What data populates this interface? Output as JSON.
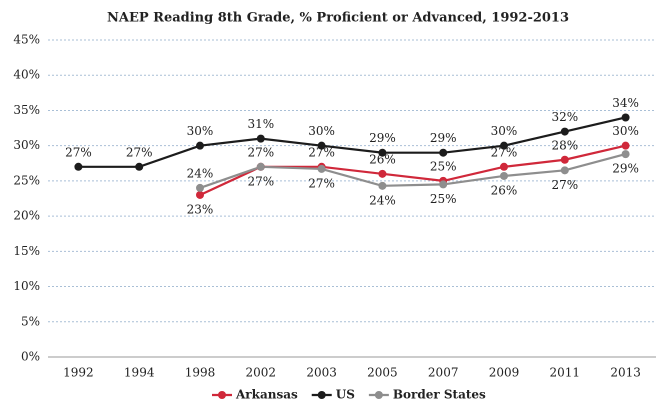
{
  "chart_data": {
    "type": "line",
    "title": "NAEP Reading 8th Grade, % Proficient or Advanced, 1992-2013",
    "categories": [
      "1992",
      "1994",
      "1998",
      "2002",
      "2003",
      "2005",
      "2007",
      "2009",
      "2011",
      "2013"
    ],
    "series": [
      {
        "name": "Arkansas",
        "color": "#d0283a",
        "values": [
          null,
          null,
          23,
          27,
          27,
          26,
          25,
          27,
          28,
          30
        ],
        "value_labels": [
          null,
          null,
          "23%",
          "27%",
          "27%",
          "26%",
          "25%",
          "27%",
          "28%",
          "30%"
        ]
      },
      {
        "name": "US",
        "color": "#1c1c1c",
        "values": [
          27,
          27,
          30,
          31,
          30,
          29,
          29,
          30,
          32,
          34
        ],
        "value_labels": [
          "27%",
          "27%",
          "30%",
          "31%",
          "30%",
          "29%",
          "29%",
          "30%",
          "32%",
          "34%"
        ]
      },
      {
        "name": "Border States",
        "color": "#8e8e8e",
        "values": [
          null,
          null,
          24,
          27,
          26.7,
          24.3,
          24.5,
          25.7,
          26.5,
          28.8
        ],
        "value_labels": [
          null,
          null,
          "24%",
          "27%",
          "27%",
          "24%",
          "25%",
          "26%",
          "27%",
          "29%"
        ]
      }
    ],
    "ylim": [
      0,
      45
    ],
    "yticks": [
      {
        "value": 0,
        "label": "0%"
      },
      {
        "value": 5,
        "label": "5%"
      },
      {
        "value": 10,
        "label": "10%"
      },
      {
        "value": 15,
        "label": "15%"
      },
      {
        "value": 20,
        "label": "20%"
      },
      {
        "value": 25,
        "label": "25%"
      },
      {
        "value": 30,
        "label": "30%"
      },
      {
        "value": 35,
        "label": "35%"
      },
      {
        "value": 40,
        "label": "40%"
      },
      {
        "value": 45,
        "label": "45%"
      }
    ],
    "grid": true,
    "legend": "bottom"
  }
}
